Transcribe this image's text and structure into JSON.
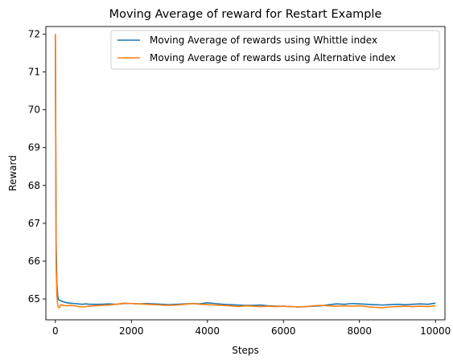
{
  "chart_data": {
    "type": "line",
    "title": "Moving Average of reward for Restart Example",
    "xlabel": "Steps",
    "ylabel": "Reward",
    "xlim": [
      -250,
      10250
    ],
    "ylim": [
      64.45,
      72.2
    ],
    "xticks": [
      0,
      2000,
      4000,
      6000,
      8000,
      10000
    ],
    "xtick_labels": [
      "0",
      "2000",
      "4000",
      "6000",
      "8000",
      "10000"
    ],
    "yticks": [
      65,
      66,
      67,
      68,
      69,
      70,
      71,
      72
    ],
    "ytick_labels": [
      "65",
      "66",
      "67",
      "68",
      "69",
      "70",
      "71",
      "72"
    ],
    "grid": false,
    "legend_position": "top-right",
    "series": [
      {
        "name": "Moving Average of rewards using Whittle index",
        "color": "#1f77b4",
        "x": [
          0,
          20,
          40,
          60,
          80,
          100,
          150,
          200,
          300,
          400,
          500,
          600,
          700,
          800,
          900,
          1000,
          1200,
          1400,
          1600,
          1800,
          2000,
          2200,
          2400,
          2600,
          2800,
          3000,
          3200,
          3400,
          3600,
          3800,
          4000,
          4200,
          4400,
          4600,
          4800,
          5000,
          5200,
          5400,
          5600,
          5800,
          6000,
          6200,
          6400,
          6600,
          6800,
          7000,
          7200,
          7400,
          7600,
          7800,
          8000,
          8200,
          8400,
          8600,
          8800,
          9000,
          9200,
          9400,
          9600,
          9800,
          10000
        ],
        "y": [
          72.0,
          66.5,
          65.4,
          65.1,
          65.0,
          64.97,
          64.95,
          64.93,
          64.9,
          64.89,
          64.88,
          64.87,
          64.86,
          64.87,
          64.86,
          64.86,
          64.86,
          64.87,
          64.86,
          64.88,
          64.88,
          64.87,
          64.88,
          64.87,
          64.86,
          64.85,
          64.86,
          64.87,
          64.88,
          64.87,
          64.9,
          64.88,
          64.86,
          64.85,
          64.84,
          64.83,
          64.83,
          64.84,
          64.82,
          64.81,
          64.81,
          64.8,
          64.79,
          64.8,
          64.81,
          64.82,
          64.85,
          64.87,
          64.86,
          64.88,
          64.87,
          64.86,
          64.85,
          64.84,
          64.85,
          64.86,
          64.85,
          64.86,
          64.87,
          64.86,
          64.89
        ]
      },
      {
        "name": "Moving Average of rewards using Alternative index",
        "color": "#ff7f0e",
        "x": [
          0,
          20,
          40,
          60,
          80,
          100,
          120,
          150,
          200,
          300,
          400,
          500,
          600,
          700,
          800,
          900,
          1000,
          1200,
          1400,
          1600,
          1800,
          2000,
          2200,
          2400,
          2600,
          2800,
          3000,
          3200,
          3400,
          3600,
          3800,
          4000,
          4200,
          4400,
          4600,
          4800,
          5000,
          5200,
          5400,
          5600,
          5800,
          6000,
          6200,
          6400,
          6600,
          6800,
          7000,
          7200,
          7400,
          7600,
          7800,
          8000,
          8200,
          8400,
          8600,
          8800,
          9000,
          9200,
          9400,
          9600,
          9800,
          10000
        ],
        "y": [
          72.0,
          65.9,
          65.1,
          64.85,
          64.78,
          64.77,
          64.8,
          64.85,
          64.83,
          64.82,
          64.83,
          64.82,
          64.8,
          64.79,
          64.8,
          64.81,
          64.82,
          64.83,
          64.84,
          64.86,
          64.89,
          64.88,
          64.87,
          64.86,
          64.85,
          64.84,
          64.83,
          64.84,
          64.86,
          64.88,
          64.86,
          64.85,
          64.84,
          64.83,
          64.82,
          64.8,
          64.82,
          64.81,
          64.8,
          64.81,
          64.8,
          64.81,
          64.8,
          64.79,
          64.8,
          64.82,
          64.83,
          64.82,
          64.81,
          64.82,
          64.81,
          64.82,
          64.8,
          64.78,
          64.77,
          64.79,
          64.8,
          64.81,
          64.8,
          64.81,
          64.8,
          64.82
        ]
      }
    ]
  }
}
